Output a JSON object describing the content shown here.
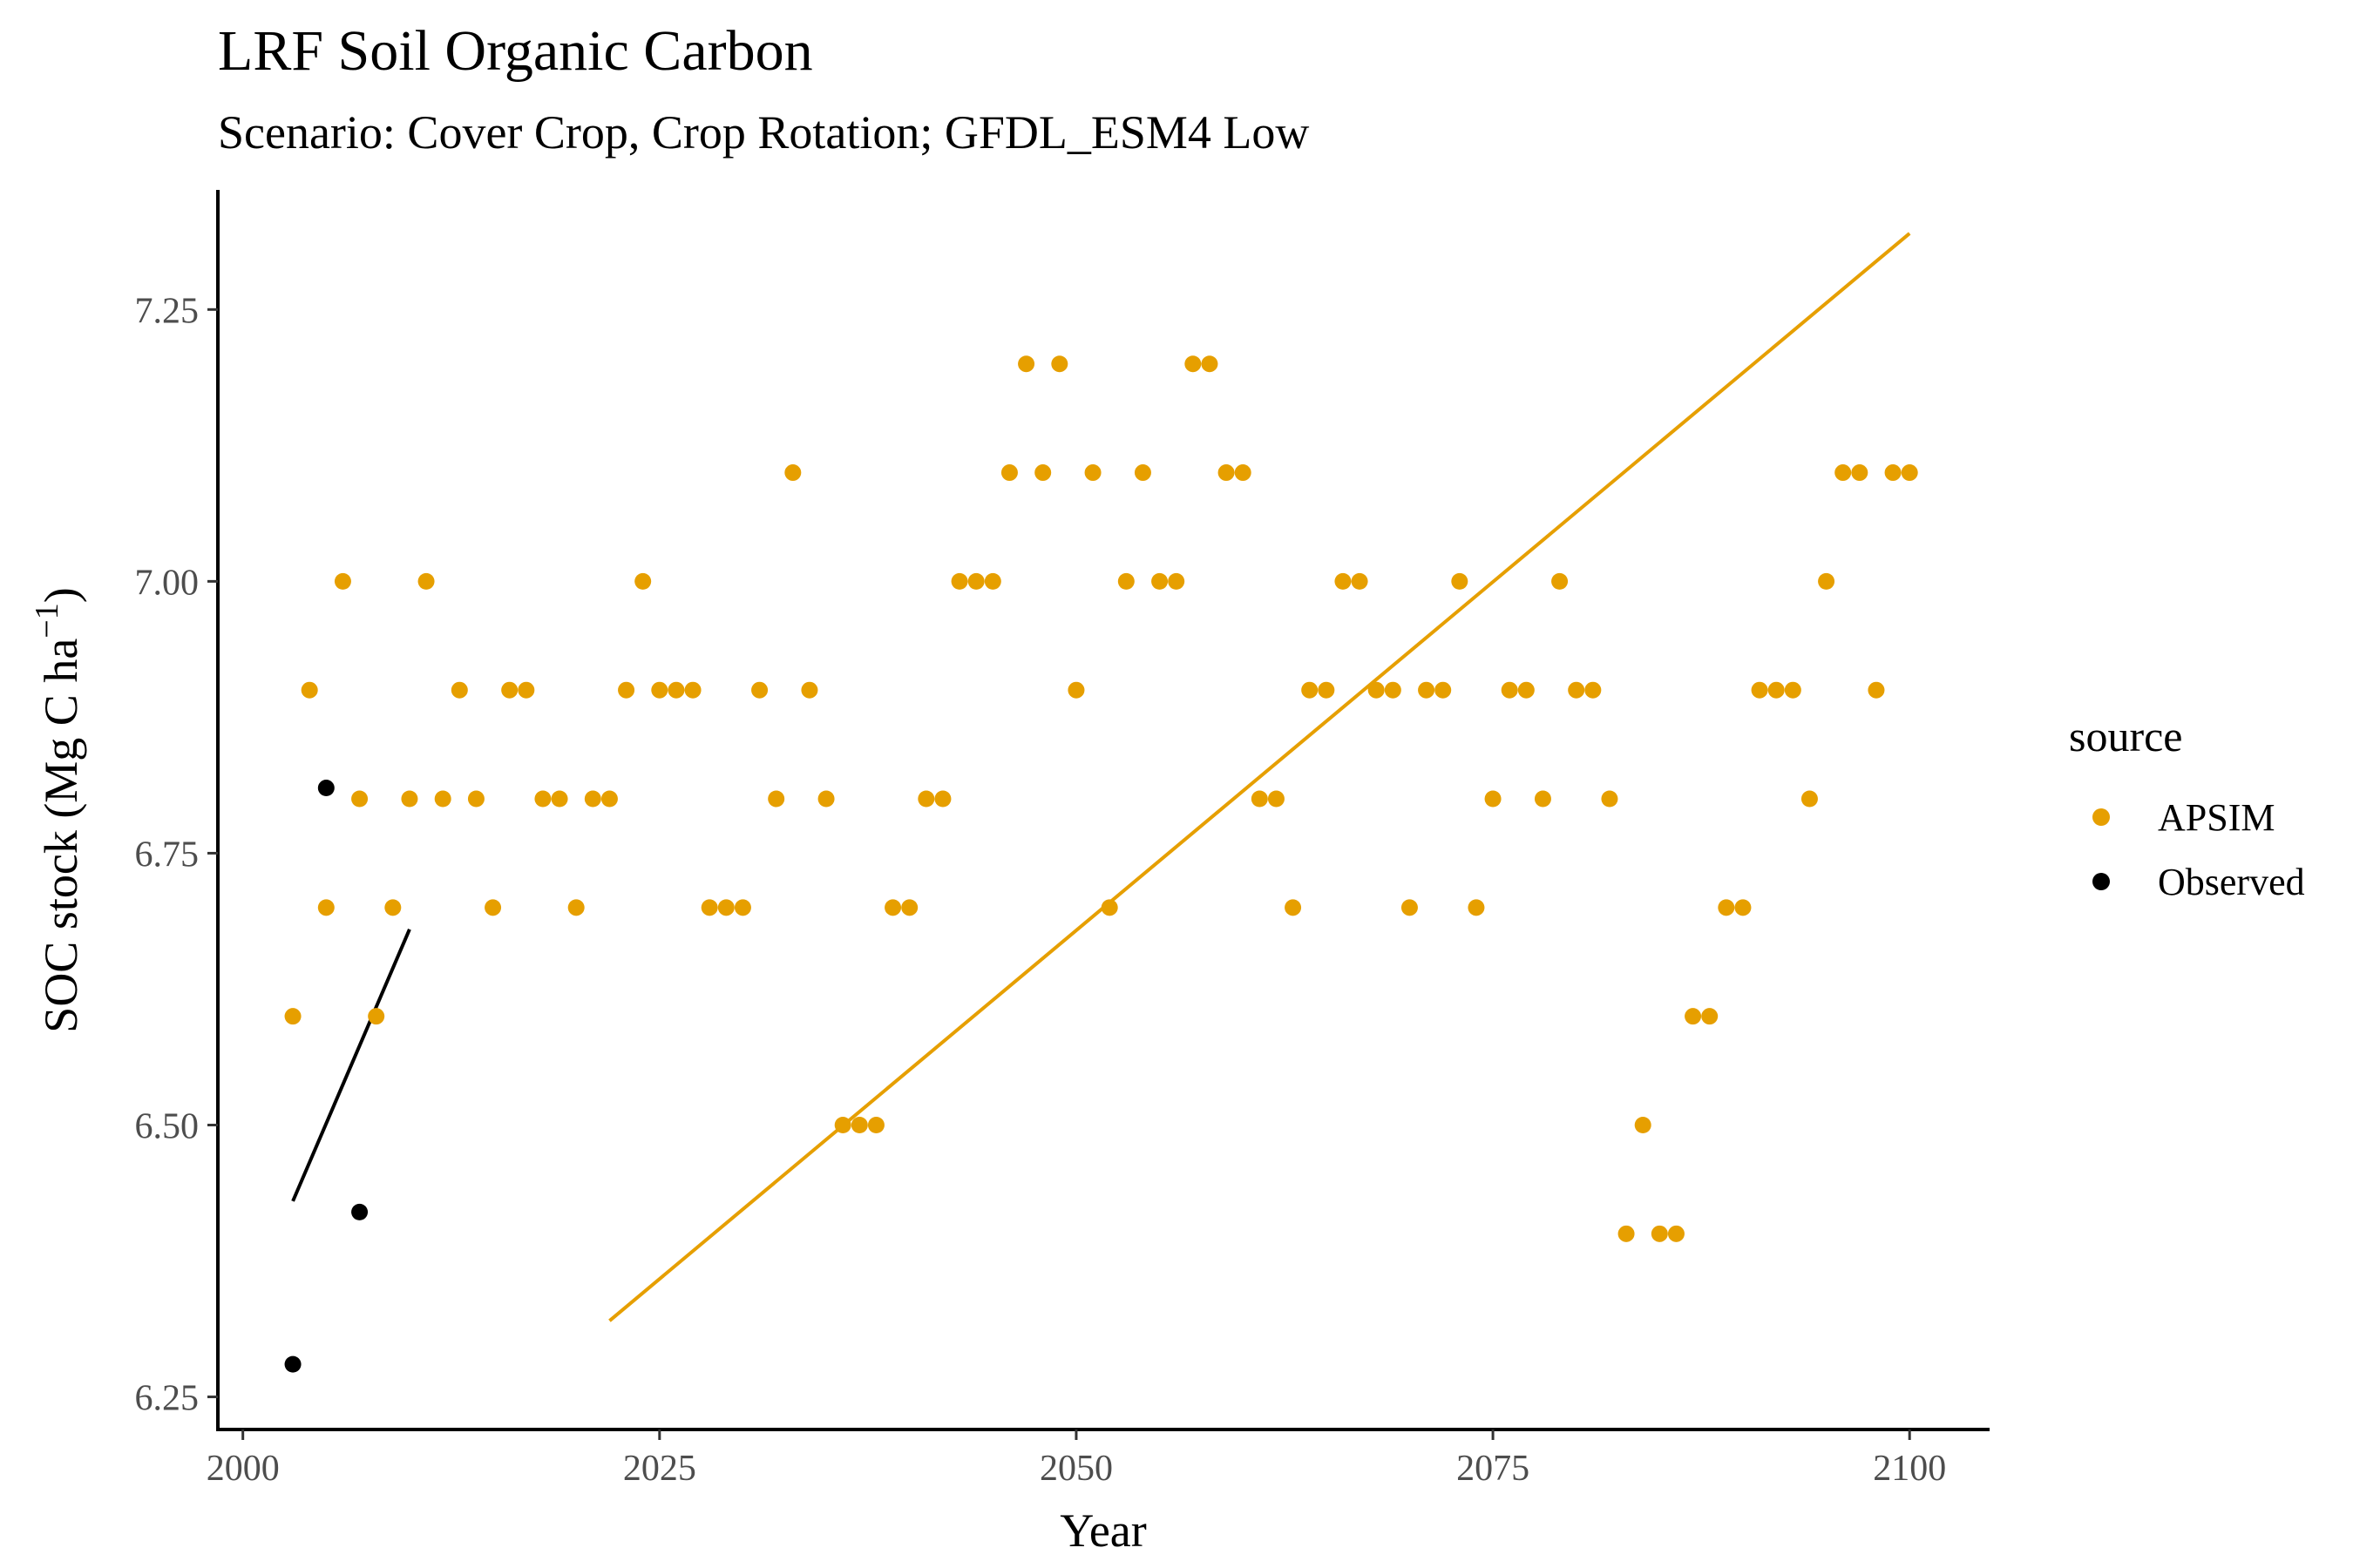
{
  "chart_data": {
    "type": "scatter",
    "title": "LRF Soil Organic Carbon",
    "subtitle": "Scenario: Cover Crop, Crop Rotation; GFDL_ESM4 Low",
    "xlabel": "Year",
    "ylabel_main": "SOC stock (Mg C ha",
    "ylabel_sup": "−1",
    "ylabel_close": ")",
    "xlim": [
      1998.5,
      2104.8
    ],
    "ylim": [
      6.22,
      7.36
    ],
    "x_ticks": [
      2000,
      2025,
      2050,
      2075,
      2100
    ],
    "x_tick_labels": [
      "2000",
      "2025",
      "2050",
      "2075",
      "2100"
    ],
    "y_ticks": [
      6.25,
      6.5,
      6.75,
      7.0,
      7.25
    ],
    "y_tick_labels": [
      "6.25",
      "6.50",
      "6.75",
      "7.00",
      "7.25"
    ],
    "grid": false,
    "legend": {
      "title": "source",
      "position": "right",
      "entries": [
        {
          "label": "APSIM",
          "color": "#E69F00"
        },
        {
          "label": "Observed",
          "color": "#000000"
        }
      ]
    },
    "series": [
      {
        "name": "APSIM",
        "color": "#E69F00",
        "points": [
          [
            2003,
            6.6
          ],
          [
            2004,
            6.9
          ],
          [
            2005,
            6.7
          ],
          [
            2006,
            7.0
          ],
          [
            2007,
            6.8
          ],
          [
            2008,
            6.6
          ],
          [
            2009,
            6.7
          ],
          [
            2010,
            6.8
          ],
          [
            2011,
            7.0
          ],
          [
            2012,
            6.8
          ],
          [
            2013,
            6.9
          ],
          [
            2014,
            6.8
          ],
          [
            2015,
            6.7
          ],
          [
            2016,
            6.9
          ],
          [
            2017,
            6.9
          ],
          [
            2018,
            6.8
          ],
          [
            2019,
            6.8
          ],
          [
            2020,
            6.7
          ],
          [
            2021,
            6.8
          ],
          [
            2022,
            6.8
          ],
          [
            2023,
            6.9
          ],
          [
            2024,
            7.0
          ],
          [
            2025,
            6.9
          ],
          [
            2026,
            6.9
          ],
          [
            2027,
            6.9
          ],
          [
            2028,
            6.7
          ],
          [
            2029,
            6.7
          ],
          [
            2030,
            6.7
          ],
          [
            2031,
            6.9
          ],
          [
            2032,
            6.8
          ],
          [
            2033,
            7.1
          ],
          [
            2034,
            6.9
          ],
          [
            2035,
            6.8
          ],
          [
            2036,
            6.5
          ],
          [
            2037,
            6.5
          ],
          [
            2038,
            6.5
          ],
          [
            2039,
            6.7
          ],
          [
            2040,
            6.7
          ],
          [
            2041,
            6.8
          ],
          [
            2042,
            6.8
          ],
          [
            2043,
            7.0
          ],
          [
            2044,
            7.0
          ],
          [
            2045,
            7.0
          ],
          [
            2046,
            7.1
          ],
          [
            2047,
            7.2
          ],
          [
            2048,
            7.1
          ],
          [
            2049,
            7.2
          ],
          [
            2050,
            6.9
          ],
          [
            2051,
            7.1
          ],
          [
            2052,
            6.7
          ],
          [
            2053,
            7.0
          ],
          [
            2054,
            7.1
          ],
          [
            2055,
            7.0
          ],
          [
            2056,
            7.0
          ],
          [
            2057,
            7.2
          ],
          [
            2058,
            7.2
          ],
          [
            2059,
            7.1
          ],
          [
            2060,
            7.1
          ],
          [
            2061,
            6.8
          ],
          [
            2062,
            6.8
          ],
          [
            2063,
            6.7
          ],
          [
            2064,
            6.9
          ],
          [
            2065,
            6.9
          ],
          [
            2066,
            7.0
          ],
          [
            2067,
            7.0
          ],
          [
            2068,
            6.9
          ],
          [
            2069,
            6.9
          ],
          [
            2070,
            6.7
          ],
          [
            2071,
            6.9
          ],
          [
            2072,
            6.9
          ],
          [
            2073,
            7.0
          ],
          [
            2074,
            6.7
          ],
          [
            2075,
            6.8
          ],
          [
            2076,
            6.9
          ],
          [
            2077,
            6.9
          ],
          [
            2078,
            6.8
          ],
          [
            2079,
            7.0
          ],
          [
            2080,
            6.9
          ],
          [
            2081,
            6.9
          ],
          [
            2082,
            6.8
          ],
          [
            2083,
            6.4
          ],
          [
            2084,
            6.5
          ],
          [
            2085,
            6.4
          ],
          [
            2086,
            6.4
          ],
          [
            2087,
            6.6
          ],
          [
            2088,
            6.6
          ],
          [
            2089,
            6.7
          ],
          [
            2090,
            6.7
          ],
          [
            2091,
            6.9
          ],
          [
            2092,
            6.9
          ],
          [
            2093,
            6.9
          ],
          [
            2094,
            6.8
          ],
          [
            2095,
            7.0
          ],
          [
            2096,
            7.1
          ],
          [
            2097,
            7.1
          ],
          [
            2098,
            6.9
          ],
          [
            2099,
            7.1
          ],
          [
            2100,
            7.1
          ]
        ],
        "trend": {
          "x": [
            2022,
            2100
          ],
          "y": [
            6.32,
            7.32
          ]
        }
      },
      {
        "name": "Observed",
        "color": "#000000",
        "points": [
          [
            2003,
            6.28
          ],
          [
            2005,
            6.81
          ],
          [
            2007,
            6.42
          ]
        ],
        "trend": {
          "x": [
            2003,
            2010
          ],
          "y": [
            6.43,
            6.68
          ]
        }
      }
    ]
  }
}
